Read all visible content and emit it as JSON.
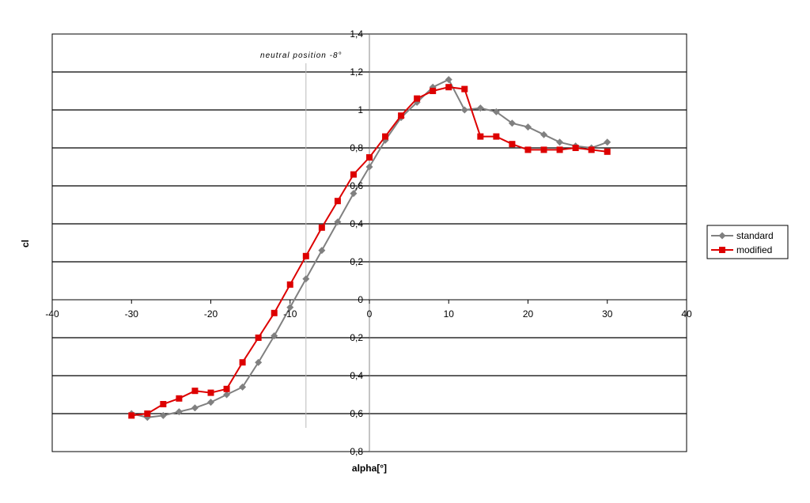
{
  "chart_data": {
    "type": "line",
    "title": "",
    "xlabel": "alpha[°]",
    "ylabel": "cl",
    "xlim": [
      -40,
      40
    ],
    "ylim": [
      -0.8,
      1.4
    ],
    "x_ticks": [
      -40,
      -30,
      -20,
      -10,
      0,
      10,
      20,
      30,
      40
    ],
    "x_tick_labels": [
      "-40",
      "-30",
      "-20",
      "-10",
      "0",
      "10",
      "20",
      "30",
      "40"
    ],
    "y_ticks": [
      1.4,
      1.2,
      1,
      0.8,
      0.6,
      0.4,
      0.2,
      0,
      -0.2,
      -0.4,
      -0.6,
      -0.8
    ],
    "y_tick_labels": [
      "1,4",
      "1,2",
      "1",
      "0,8",
      "0,6",
      "0,4",
      "0,2",
      "0",
      "0,2",
      "0,4",
      "0,6",
      "0,8"
    ],
    "grid": "horizontal",
    "legend_position": "right",
    "annotation": {
      "text": "neutral position -8°",
      "x": -8
    },
    "series": [
      {
        "name": "standard",
        "color": "#808080",
        "marker": "diamond",
        "x": [
          -30,
          -28,
          -26,
          -24,
          -22,
          -20,
          -18,
          -16,
          -14,
          -12,
          -10,
          -8,
          -6,
          -4,
          -2,
          0,
          2,
          4,
          6,
          8,
          10,
          12,
          14,
          16,
          18,
          20,
          22,
          24,
          26,
          28,
          30
        ],
        "y": [
          -0.6,
          -0.62,
          -0.61,
          -0.59,
          -0.57,
          -0.54,
          -0.5,
          -0.46,
          -0.33,
          -0.19,
          -0.04,
          0.11,
          0.26,
          0.41,
          0.56,
          0.7,
          0.84,
          0.96,
          1.04,
          1.12,
          1.16,
          1.0,
          1.01,
          0.99,
          0.93,
          0.91,
          0.87,
          0.83,
          0.81,
          0.8,
          0.83
        ]
      },
      {
        "name": "modified",
        "color": "#dd0000",
        "marker": "square",
        "x": [
          -30,
          -28,
          -26,
          -24,
          -22,
          -20,
          -18,
          -16,
          -14,
          -12,
          -10,
          -8,
          -6,
          -4,
          -2,
          0,
          2,
          4,
          6,
          8,
          10,
          12,
          14,
          16,
          18,
          20,
          22,
          24,
          26,
          28,
          30
        ],
        "y": [
          -0.61,
          -0.6,
          -0.55,
          -0.52,
          -0.48,
          -0.49,
          -0.47,
          -0.33,
          -0.2,
          -0.07,
          0.08,
          0.23,
          0.38,
          0.52,
          0.66,
          0.75,
          0.86,
          0.97,
          1.06,
          1.1,
          1.12,
          1.11,
          0.86,
          0.86,
          0.82,
          0.79,
          0.79,
          0.79,
          0.8,
          0.79,
          0.78
        ]
      }
    ]
  }
}
